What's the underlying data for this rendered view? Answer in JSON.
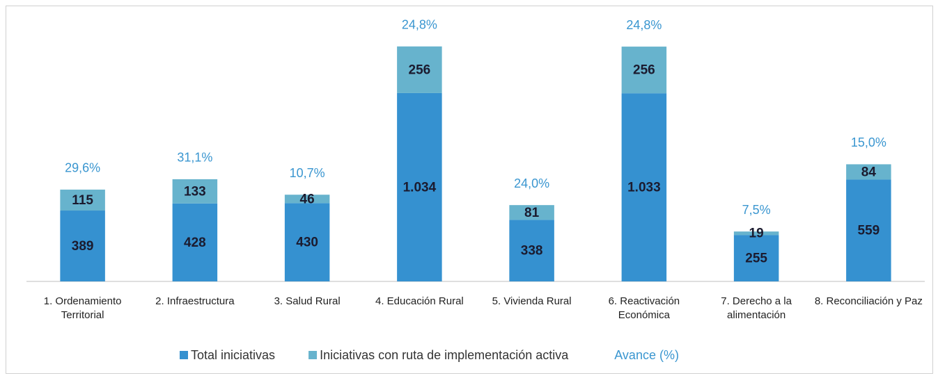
{
  "chart_data": {
    "type": "bar",
    "stacked": true,
    "categories": [
      "1. Ordenamiento Territorial",
      "2. Infraestructura",
      "3. Salud Rural",
      "4. Educación Rural",
      "5. Vivienda Rural",
      "6. Reactivación Económica",
      "7. Derecho a la alimentación",
      "8. Reconciliación y Paz"
    ],
    "series": [
      {
        "name": "Total iniciativas",
        "color": "#3591d0",
        "values": [
          389,
          428,
          430,
          1034,
          338,
          1033,
          255,
          559
        ],
        "value_labels": [
          "389",
          "428",
          "430",
          "1.034",
          "338",
          "1.033",
          "255",
          "559"
        ]
      },
      {
        "name": "Iniciativas con ruta de implementación activa",
        "color": "#67b3cd",
        "values": [
          115,
          133,
          46,
          256,
          81,
          256,
          19,
          84
        ]
      }
    ],
    "avance": {
      "name": "Avance (%)",
      "color": "#3a96d0",
      "values": [
        29.6,
        31.1,
        10.7,
        24.8,
        24.0,
        24.8,
        7.5,
        15.0
      ],
      "value_labels": [
        "29,6%",
        "31,1%",
        "10,7%",
        "24,8%",
        "24,0%",
        "24,8%",
        "7,5%",
        "15,0%"
      ]
    },
    "ylim": [
      0,
      1480
    ],
    "legend": "bottom"
  }
}
